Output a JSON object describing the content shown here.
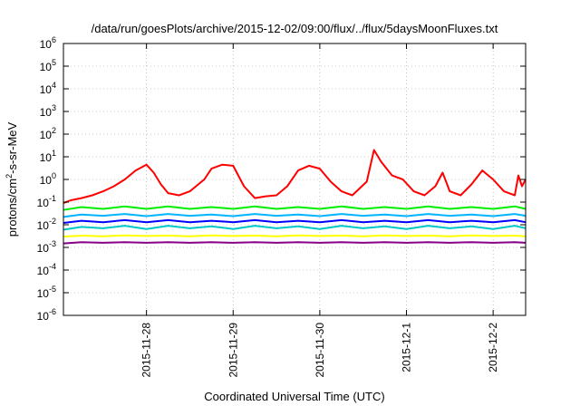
{
  "chart_data": {
    "type": "line",
    "title": "/data/run/goesPlots/archive/2015-12-02/09:00/flux/../flux/5daysMoonFluxes.txt",
    "xlabel": "Coordinated Universal Time (UTC)",
    "ylabel": {
      "base": "protons/cm",
      "sup": "2",
      "rest": "-s-sr-MeV"
    },
    "y_scale": "log",
    "ylim": [
      1e-06,
      1000000.0
    ],
    "y_ticks": [
      {
        "value": 1e-06,
        "base": "10",
        "exp": "-6"
      },
      {
        "value": 1e-05,
        "base": "10",
        "exp": "-5"
      },
      {
        "value": 0.0001,
        "base": "10",
        "exp": "-4"
      },
      {
        "value": 0.001,
        "base": "10",
        "exp": "-3"
      },
      {
        "value": 0.01,
        "base": "10",
        "exp": "-2"
      },
      {
        "value": 0.1,
        "base": "10",
        "exp": "-1"
      },
      {
        "value": 1,
        "base": "10",
        "exp": "0"
      },
      {
        "value": 10,
        "base": "10",
        "exp": "1"
      },
      {
        "value": 100,
        "base": "10",
        "exp": "2"
      },
      {
        "value": 1000,
        "base": "10",
        "exp": "3"
      },
      {
        "value": 10000,
        "base": "10",
        "exp": "4"
      },
      {
        "value": 100000,
        "base": "10",
        "exp": "5"
      },
      {
        "value": 1000000,
        "base": "10",
        "exp": "6"
      }
    ],
    "xlim": [
      "2015-11-27T01:00",
      "2015-12-02T09:00"
    ],
    "x_ticks": [
      {
        "value": "2015-11-28T00:00",
        "label": "2015-11-28"
      },
      {
        "value": "2015-11-29T00:00",
        "label": "2015-11-29"
      },
      {
        "value": "2015-11-30T00:00",
        "label": "2015-11-30"
      },
      {
        "value": "2015-12-01T00:00",
        "label": "2015-12-1"
      },
      {
        "value": "2015-12-02T00:00",
        "label": "2015-12-2"
      }
    ],
    "grid": true,
    "series": [
      {
        "color": "#880088",
        "points": [
          [
            "2015-11-27T01:00",
            0.0015
          ],
          [
            "2015-11-27T06:00",
            0.0017
          ],
          [
            "2015-11-27T12:00",
            0.0016
          ],
          [
            "2015-11-27T18:00",
            0.0017
          ],
          [
            "2015-11-28T00:00",
            0.0016
          ],
          [
            "2015-11-28T06:00",
            0.0017
          ],
          [
            "2015-11-28T12:00",
            0.0016
          ],
          [
            "2015-11-28T18:00",
            0.0017
          ],
          [
            "2015-11-29T00:00",
            0.0016
          ],
          [
            "2015-11-29T06:00",
            0.0017
          ],
          [
            "2015-11-29T12:00",
            0.0016
          ],
          [
            "2015-11-29T18:00",
            0.0017
          ],
          [
            "2015-11-30T00:00",
            0.0016
          ],
          [
            "2015-11-30T06:00",
            0.0017
          ],
          [
            "2015-11-30T12:00",
            0.0016
          ],
          [
            "2015-11-30T18:00",
            0.0017
          ],
          [
            "2015-12-01T00:00",
            0.0016
          ],
          [
            "2015-12-01T06:00",
            0.0017
          ],
          [
            "2015-12-01T12:00",
            0.0016
          ],
          [
            "2015-12-01T18:00",
            0.0017
          ],
          [
            "2015-12-02T00:00",
            0.0016
          ],
          [
            "2015-12-02T06:00",
            0.0017
          ],
          [
            "2015-12-02T09:00",
            0.0016
          ]
        ]
      },
      {
        "color": "#ffff00",
        "points": [
          [
            "2015-11-27T01:00",
            0.003
          ],
          [
            "2015-11-27T06:00",
            0.0033
          ],
          [
            "2015-11-27T12:00",
            0.0031
          ],
          [
            "2015-11-27T18:00",
            0.0034
          ],
          [
            "2015-11-28T00:00",
            0.0032
          ],
          [
            "2015-11-28T06:00",
            0.0033
          ],
          [
            "2015-11-28T12:00",
            0.0031
          ],
          [
            "2015-11-28T18:00",
            0.0034
          ],
          [
            "2015-11-29T00:00",
            0.0032
          ],
          [
            "2015-11-29T06:00",
            0.0033
          ],
          [
            "2015-11-29T12:00",
            0.0031
          ],
          [
            "2015-11-29T18:00",
            0.0034
          ],
          [
            "2015-11-30T00:00",
            0.0032
          ],
          [
            "2015-11-30T06:00",
            0.0033
          ],
          [
            "2015-11-30T12:00",
            0.0031
          ],
          [
            "2015-11-30T18:00",
            0.0034
          ],
          [
            "2015-12-01T00:00",
            0.0032
          ],
          [
            "2015-12-01T06:00",
            0.0033
          ],
          [
            "2015-12-01T12:00",
            0.0031
          ],
          [
            "2015-12-01T18:00",
            0.0034
          ],
          [
            "2015-12-02T00:00",
            0.0032
          ],
          [
            "2015-12-02T06:00",
            0.0033
          ],
          [
            "2015-12-02T09:00",
            0.0031
          ]
        ]
      },
      {
        "color": "#00c8c8",
        "points": [
          [
            "2015-11-27T01:00",
            0.006
          ],
          [
            "2015-11-27T06:00",
            0.008
          ],
          [
            "2015-11-27T12:00",
            0.007
          ],
          [
            "2015-11-27T18:00",
            0.009
          ],
          [
            "2015-11-28T00:00",
            0.0065
          ],
          [
            "2015-11-28T06:00",
            0.009
          ],
          [
            "2015-11-28T12:00",
            0.007
          ],
          [
            "2015-11-28T18:00",
            0.0085
          ],
          [
            "2015-11-29T00:00",
            0.0065
          ],
          [
            "2015-11-29T06:00",
            0.009
          ],
          [
            "2015-11-29T12:00",
            0.007
          ],
          [
            "2015-11-29T18:00",
            0.0085
          ],
          [
            "2015-11-30T00:00",
            0.0065
          ],
          [
            "2015-11-30T06:00",
            0.009
          ],
          [
            "2015-11-30T12:00",
            0.007
          ],
          [
            "2015-11-30T18:00",
            0.0085
          ],
          [
            "2015-12-01T00:00",
            0.0065
          ],
          [
            "2015-12-01T06:00",
            0.009
          ],
          [
            "2015-12-01T12:00",
            0.007
          ],
          [
            "2015-12-01T18:00",
            0.0085
          ],
          [
            "2015-12-02T00:00",
            0.0065
          ],
          [
            "2015-12-02T06:00",
            0.009
          ],
          [
            "2015-12-02T09:00",
            0.007
          ]
        ]
      },
      {
        "color": "#0000ff",
        "points": [
          [
            "2015-11-27T01:00",
            0.012
          ],
          [
            "2015-11-27T06:00",
            0.015
          ],
          [
            "2015-11-27T12:00",
            0.013
          ],
          [
            "2015-11-27T18:00",
            0.016
          ],
          [
            "2015-11-28T00:00",
            0.013
          ],
          [
            "2015-11-28T06:00",
            0.016
          ],
          [
            "2015-11-28T12:00",
            0.013
          ],
          [
            "2015-11-28T18:00",
            0.015
          ],
          [
            "2015-11-29T00:00",
            0.013
          ],
          [
            "2015-11-29T06:00",
            0.016
          ],
          [
            "2015-11-29T12:00",
            0.013
          ],
          [
            "2015-11-29T18:00",
            0.015
          ],
          [
            "2015-11-30T00:00",
            0.013
          ],
          [
            "2015-11-30T06:00",
            0.016
          ],
          [
            "2015-11-30T12:00",
            0.013
          ],
          [
            "2015-11-30T18:00",
            0.015
          ],
          [
            "2015-12-01T00:00",
            0.013
          ],
          [
            "2015-12-01T06:00",
            0.016
          ],
          [
            "2015-12-01T12:00",
            0.013
          ],
          [
            "2015-12-01T18:00",
            0.015
          ],
          [
            "2015-12-02T00:00",
            0.013
          ],
          [
            "2015-12-02T06:00",
            0.016
          ],
          [
            "2015-12-02T09:00",
            0.013
          ]
        ]
      },
      {
        "color": "#00b4ff",
        "points": [
          [
            "2015-11-27T01:00",
            0.022
          ],
          [
            "2015-11-27T06:00",
            0.028
          ],
          [
            "2015-11-27T12:00",
            0.025
          ],
          [
            "2015-11-27T18:00",
            0.03
          ],
          [
            "2015-11-28T00:00",
            0.024
          ],
          [
            "2015-11-28T06:00",
            0.03
          ],
          [
            "2015-11-28T12:00",
            0.025
          ],
          [
            "2015-11-28T18:00",
            0.028
          ],
          [
            "2015-11-29T00:00",
            0.024
          ],
          [
            "2015-11-29T06:00",
            0.03
          ],
          [
            "2015-11-29T12:00",
            0.025
          ],
          [
            "2015-11-29T18:00",
            0.028
          ],
          [
            "2015-11-30T00:00",
            0.024
          ],
          [
            "2015-11-30T06:00",
            0.03
          ],
          [
            "2015-11-30T12:00",
            0.025
          ],
          [
            "2015-11-30T18:00",
            0.028
          ],
          [
            "2015-12-01T00:00",
            0.024
          ],
          [
            "2015-12-01T06:00",
            0.03
          ],
          [
            "2015-12-01T12:00",
            0.025
          ],
          [
            "2015-12-01T18:00",
            0.028
          ],
          [
            "2015-12-02T00:00",
            0.024
          ],
          [
            "2015-12-02T06:00",
            0.03
          ],
          [
            "2015-12-02T09:00",
            0.025
          ]
        ]
      },
      {
        "color": "#00ee00",
        "points": [
          [
            "2015-11-27T01:00",
            0.045
          ],
          [
            "2015-11-27T06:00",
            0.06
          ],
          [
            "2015-11-27T12:00",
            0.05
          ],
          [
            "2015-11-27T18:00",
            0.065
          ],
          [
            "2015-11-28T00:00",
            0.05
          ],
          [
            "2015-11-28T06:00",
            0.065
          ],
          [
            "2015-11-28T12:00",
            0.05
          ],
          [
            "2015-11-28T18:00",
            0.06
          ],
          [
            "2015-11-29T00:00",
            0.05
          ],
          [
            "2015-11-29T06:00",
            0.065
          ],
          [
            "2015-11-29T12:00",
            0.05
          ],
          [
            "2015-11-29T18:00",
            0.06
          ],
          [
            "2015-11-30T00:00",
            0.05
          ],
          [
            "2015-11-30T06:00",
            0.065
          ],
          [
            "2015-11-30T12:00",
            0.05
          ],
          [
            "2015-11-30T18:00",
            0.06
          ],
          [
            "2015-12-01T00:00",
            0.05
          ],
          [
            "2015-12-01T06:00",
            0.065
          ],
          [
            "2015-12-01T12:00",
            0.05
          ],
          [
            "2015-12-01T18:00",
            0.06
          ],
          [
            "2015-12-02T00:00",
            0.05
          ],
          [
            "2015-12-02T06:00",
            0.065
          ],
          [
            "2015-12-02T09:00",
            0.05
          ]
        ]
      },
      {
        "color": "#ff0000",
        "points": [
          [
            "2015-11-27T01:00",
            0.09
          ],
          [
            "2015-11-27T03:00",
            0.12
          ],
          [
            "2015-11-27T06:00",
            0.15
          ],
          [
            "2015-11-27T09:00",
            0.2
          ],
          [
            "2015-11-27T12:00",
            0.3
          ],
          [
            "2015-11-27T15:00",
            0.5
          ],
          [
            "2015-11-27T18:00",
            1.0
          ],
          [
            "2015-11-27T21:00",
            2.5
          ],
          [
            "2015-11-28T00:00",
            4.5
          ],
          [
            "2015-11-28T02:00",
            2.0
          ],
          [
            "2015-11-28T04:00",
            0.6
          ],
          [
            "2015-11-28T06:00",
            0.25
          ],
          [
            "2015-11-28T09:00",
            0.2
          ],
          [
            "2015-11-28T12:00",
            0.3
          ],
          [
            "2015-11-28T16:00",
            1.0
          ],
          [
            "2015-11-28T18:00",
            3.0
          ],
          [
            "2015-11-28T21:00",
            4.5
          ],
          [
            "2015-11-29T00:00",
            4.0
          ],
          [
            "2015-11-29T01:00",
            2.0
          ],
          [
            "2015-11-29T03:00",
            0.5
          ],
          [
            "2015-11-29T06:00",
            0.15
          ],
          [
            "2015-11-29T09:00",
            0.18
          ],
          [
            "2015-11-29T12:00",
            0.2
          ],
          [
            "2015-11-29T15:00",
            0.5
          ],
          [
            "2015-11-29T18:00",
            2.5
          ],
          [
            "2015-11-29T21:00",
            4.0
          ],
          [
            "2015-11-30T00:00",
            3.0
          ],
          [
            "2015-11-30T03:00",
            0.8
          ],
          [
            "2015-11-30T06:00",
            0.3
          ],
          [
            "2015-11-30T09:00",
            0.2
          ],
          [
            "2015-11-30T13:00",
            0.8
          ],
          [
            "2015-11-30T15:00",
            20
          ],
          [
            "2015-11-30T17:00",
            6.0
          ],
          [
            "2015-11-30T20:00",
            1.5
          ],
          [
            "2015-11-30T23:00",
            1.0
          ],
          [
            "2015-12-01T02:00",
            0.3
          ],
          [
            "2015-12-01T05:00",
            0.2
          ],
          [
            "2015-12-01T08:00",
            0.5
          ],
          [
            "2015-12-01T10:00",
            2.0
          ],
          [
            "2015-12-01T12:00",
            0.3
          ],
          [
            "2015-12-01T15:00",
            0.2
          ],
          [
            "2015-12-01T18:00",
            0.6
          ],
          [
            "2015-12-01T21:00",
            2.5
          ],
          [
            "2015-12-02T00:00",
            1.0
          ],
          [
            "2015-12-02T03:00",
            0.3
          ],
          [
            "2015-12-02T06:00",
            0.2
          ],
          [
            "2015-12-02T07:00",
            1.5
          ],
          [
            "2015-12-02T08:00",
            0.5
          ],
          [
            "2015-12-02T09:00",
            1.0
          ]
        ]
      }
    ]
  }
}
